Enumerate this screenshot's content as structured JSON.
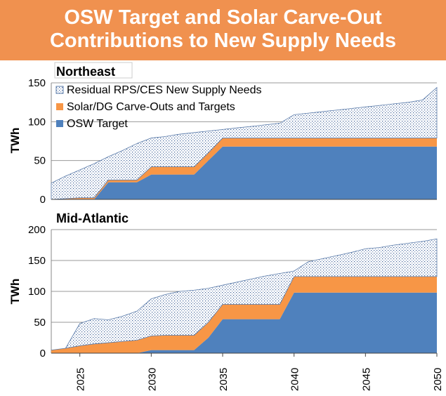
{
  "title_line1": "OSW Target and Solar Carve-Out",
  "title_line2": "Contributions to New Supply Needs",
  "colors": {
    "banner": "#F0914F",
    "osw": "#4F81BD",
    "solar": "#F79646",
    "residual_dots": "#1F4E8C"
  },
  "legend": [
    "Residual RPS/CES New Supply Needs",
    "Solar/DG Carve-Outs and Targets",
    "OSW Target"
  ],
  "chart_data": [
    {
      "type": "area",
      "stacked": true,
      "title": "Northeast",
      "ylabel": "TWh",
      "ylim": [
        0,
        150
      ],
      "yticks": [
        0,
        50,
        100,
        150
      ],
      "xlim": [
        2023,
        2050
      ],
      "x": [
        2023,
        2024,
        2025,
        2026,
        2027,
        2028,
        2029,
        2030,
        2031,
        2032,
        2033,
        2034,
        2035,
        2036,
        2037,
        2038,
        2039,
        2040,
        2041,
        2042,
        2043,
        2044,
        2045,
        2046,
        2047,
        2048,
        2049,
        2050
      ],
      "series": [
        {
          "name": "OSW Target",
          "values": [
            0,
            0,
            0,
            0,
            22,
            22,
            22,
            32,
            32,
            32,
            32,
            50,
            68,
            68,
            68,
            68,
            68,
            68,
            68,
            68,
            68,
            68,
            68,
            68,
            68,
            68,
            68,
            68
          ]
        },
        {
          "name": "Solar/DG Carve-Outs and Targets",
          "values": [
            0,
            1,
            2,
            2,
            3,
            3,
            3,
            10,
            10,
            10,
            10,
            10,
            11,
            11,
            11,
            11,
            11,
            11,
            11,
            11,
            11,
            11,
            11,
            11,
            11,
            11,
            11,
            11
          ]
        },
        {
          "name": "Residual RPS/CES New Supply Needs",
          "values": [
            21,
            29,
            36,
            44,
            30,
            38,
            47,
            37,
            39,
            42,
            44,
            28,
            11,
            13,
            15,
            17,
            19,
            30,
            32,
            34,
            36,
            38,
            40,
            42,
            44,
            46,
            49,
            65
          ]
        }
      ],
      "grid": true,
      "legend_position": "top-left"
    },
    {
      "type": "area",
      "stacked": true,
      "title": "Mid-Atlantic",
      "ylabel": "TWh",
      "ylim": [
        0,
        200
      ],
      "yticks": [
        0,
        50,
        100,
        150,
        200
      ],
      "xlim": [
        2023,
        2050
      ],
      "xticks": [
        "2025",
        "2030",
        "2035",
        "2040",
        "2045",
        "2050"
      ],
      "x": [
        2023,
        2024,
        2025,
        2026,
        2027,
        2028,
        2029,
        2030,
        2031,
        2032,
        2033,
        2034,
        2035,
        2036,
        2037,
        2038,
        2039,
        2040,
        2041,
        2042,
        2043,
        2044,
        2045,
        2046,
        2047,
        2048,
        2049,
        2050
      ],
      "series": [
        {
          "name": "OSW Target",
          "values": [
            0,
            0,
            0,
            0,
            0,
            0,
            0,
            5,
            5,
            5,
            5,
            25,
            55,
            55,
            55,
            55,
            55,
            98,
            98,
            98,
            98,
            98,
            98,
            98,
            98,
            98,
            98,
            98
          ]
        },
        {
          "name": "Solar/DG Carve-Outs and Targets",
          "values": [
            5,
            8,
            12,
            15,
            17,
            19,
            21,
            23,
            24,
            24,
            24,
            25,
            24,
            24,
            24,
            24,
            24,
            26,
            26,
            26,
            26,
            26,
            26,
            26,
            26,
            26,
            26,
            26
          ]
        },
        {
          "name": "Residual RPS/CES New Supply Needs",
          "values": [
            0,
            0,
            36,
            41,
            37,
            41,
            47,
            60,
            66,
            71,
            73,
            55,
            31,
            36,
            41,
            46,
            50,
            9,
            24,
            29,
            34,
            39,
            45,
            47,
            51,
            54,
            57,
            61
          ]
        }
      ],
      "grid": true
    }
  ]
}
